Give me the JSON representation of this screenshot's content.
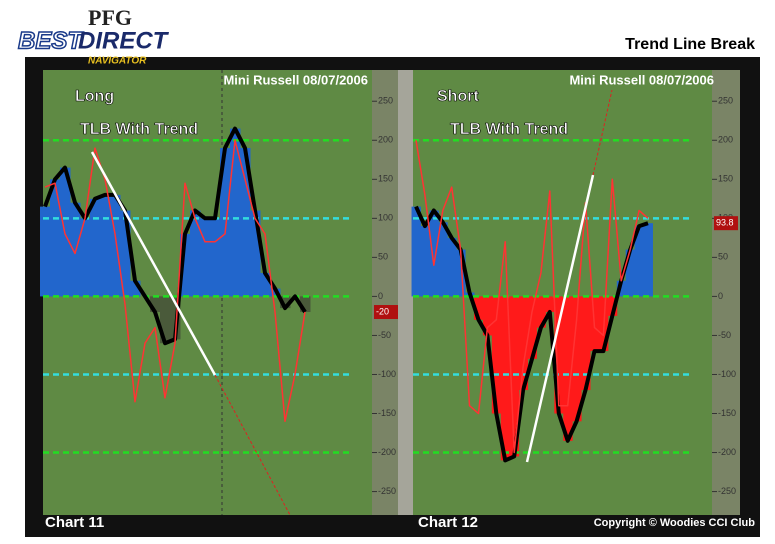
{
  "header": {
    "logo_top": "PFG",
    "logo_left": "BEST",
    "logo_right": "DIRECT",
    "logo_sub": "NAVIGATOR",
    "title": "Trend Line Break"
  },
  "footer": {
    "copyright": "Copyright © Woodies CCI Club"
  },
  "chart_data": [
    {
      "type": "line",
      "title": "Mini Russell 08/07/2006",
      "annotations": [
        "Long",
        "TLB With Trend"
      ],
      "label": "Chart 11",
      "ylim": [
        -280,
        290
      ],
      "yticks": [
        250,
        200,
        150,
        100,
        50,
        0,
        -50,
        -100,
        -150,
        -200,
        -250
      ],
      "current_value": -20,
      "reference_lines": [
        {
          "value": 200,
          "color": "#22dd22"
        },
        {
          "value": 100,
          "color": "#33dddd"
        },
        {
          "value": 0,
          "color": "#22dd22"
        },
        {
          "value": -100,
          "color": "#33dddd"
        },
        {
          "value": -200,
          "color": "#22dd22"
        }
      ],
      "series": [
        {
          "color": "#000000",
          "positive_color": "#2266cc",
          "negative_color": "#4a5a3a",
          "values": [
            115,
            150,
            165,
            120,
            100,
            125,
            130,
            130,
            110,
            20,
            0,
            -20,
            -60,
            -55,
            80,
            110,
            100,
            100,
            190,
            215,
            190,
            110,
            30,
            10,
            -15,
            0,
            -20
          ]
        },
        {
          "color": "#ff3333",
          "values": [
            140,
            145,
            80,
            55,
            100,
            190,
            150,
            80,
            -10,
            -135,
            -60,
            -40,
            -130,
            -60,
            145,
            100,
            70,
            70,
            80,
            200,
            150,
            100,
            80,
            -20,
            -160,
            -100,
            -20
          ]
        }
      ]
    },
    {
      "type": "line",
      "title": "Mini Russell 08/07/2006",
      "annotations": [
        "Short",
        "TLB With Trend"
      ],
      "label": "Chart 12",
      "ylim": [
        -280,
        290
      ],
      "yticks": [
        250,
        200,
        150,
        100,
        50,
        0,
        -50,
        -100,
        -150,
        -200,
        -250
      ],
      "current_value": 93.8,
      "reference_lines": [
        {
          "value": 200,
          "color": "#22dd22"
        },
        {
          "value": 100,
          "color": "#33dddd"
        },
        {
          "value": 0,
          "color": "#22dd22"
        },
        {
          "value": -100,
          "color": "#33dddd"
        },
        {
          "value": -200,
          "color": "#22dd22"
        }
      ],
      "series": [
        {
          "color": "#000000",
          "positive_color": "#2266cc",
          "negative_color": "#ff1a1a",
          "values": [
            115,
            90,
            110,
            95,
            75,
            60,
            5,
            -30,
            -50,
            -150,
            -210,
            -205,
            -120,
            -80,
            -40,
            -20,
            -150,
            -185,
            -160,
            -120,
            -70,
            -70,
            -25,
            20,
            60,
            90,
            93.8
          ]
        },
        {
          "color": "#ff3333",
          "values": [
            200,
            130,
            40,
            110,
            140,
            60,
            -140,
            -150,
            -40,
            -30,
            70,
            -200,
            -90,
            -20,
            30,
            135,
            -140,
            -140,
            -30,
            120,
            -40,
            -50,
            150,
            20,
            60,
            110,
            100
          ]
        }
      ]
    }
  ]
}
